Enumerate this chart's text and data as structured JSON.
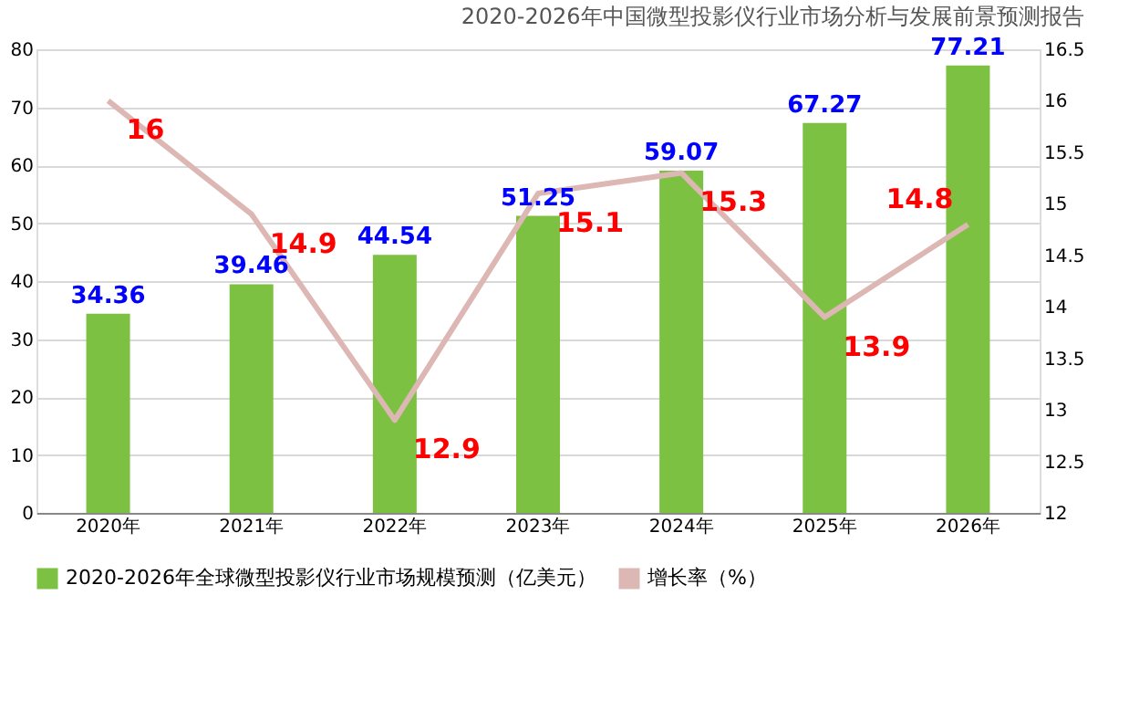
{
  "chart_data": {
    "type": "bar",
    "title": "2020-2026年中国微型投影仪行业市场分析与发展前景预测报告",
    "categories": [
      "2020年",
      "2021年",
      "2022年",
      "2023年",
      "2024年",
      "2025年",
      "2026年"
    ],
    "series": [
      {
        "name": "2020-2026年全球微型投影仪行业市场规模预测（亿美元）",
        "color": "#7cc142",
        "axis": "y",
        "values": [
          34.36,
          39.46,
          44.54,
          51.25,
          59.07,
          67.27,
          77.21
        ]
      },
      {
        "name": "增长率（%）",
        "color": "#dcb7b4",
        "type": "line",
        "axis": "y2",
        "values": [
          16,
          14.9,
          12.9,
          15.1,
          15.3,
          13.9,
          14.8
        ]
      }
    ],
    "ylim": [
      0,
      80
    ],
    "yticks": [
      0,
      10,
      20,
      30,
      40,
      50,
      60,
      70,
      80
    ],
    "y2lim": [
      12,
      16.5
    ],
    "y2ticks": [
      12,
      12.5,
      13,
      13.5,
      14,
      14.5,
      15,
      15.5,
      16,
      16.5
    ],
    "data_labels": true,
    "grid": "y",
    "legend": "bottom",
    "marker": "none",
    "line_style": "solid"
  }
}
